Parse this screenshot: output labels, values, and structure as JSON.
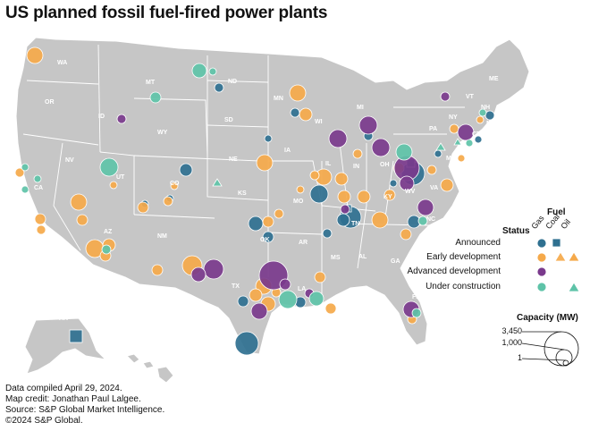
{
  "title": "US planned fossil fuel-fired power plants",
  "colors": {
    "land": "#c6c6c6",
    "borders": "#ffffff",
    "announced": "#2f7090",
    "early": "#f5a94a",
    "advanced": "#7a3a8c",
    "construction": "#5ec3a8"
  },
  "state_labels": [
    "WA",
    "OR",
    "ID",
    "MT",
    "ND",
    "SD",
    "WY",
    "MN",
    "WI",
    "MI",
    "IA",
    "NE",
    "NV",
    "CA",
    "UT",
    "CO",
    "KS",
    "MO",
    "IL",
    "IN",
    "OH",
    "PA",
    "NY",
    "VT",
    "NH",
    "ME",
    "MA",
    "RI",
    "CT",
    "NJ",
    "DE",
    "MD",
    "VA",
    "WV",
    "KY",
    "TN",
    "NC",
    "SC",
    "GA",
    "AL",
    "MS",
    "AR",
    "LA",
    "OK",
    "TX",
    "NM",
    "AZ",
    "FL",
    "AK",
    "HI"
  ],
  "legend": {
    "fuel_title": "Fuel",
    "status_title": "Status",
    "fuel_types": [
      "Gas",
      "Coal",
      "Oil"
    ],
    "statuses": [
      "Announced",
      "Early development",
      "Advanced development",
      "Under construction"
    ],
    "capacity_title": "Capacity (MW)",
    "capacity_values": [
      "3,450",
      "1,000",
      "1"
    ]
  },
  "footer": [
    "Data compiled April 29, 2024.",
    "Map credit: Jonathan Paul Lalgee.",
    "Source: S&P Global Market Intelligence.",
    "©2024 S&P Global."
  ]
}
